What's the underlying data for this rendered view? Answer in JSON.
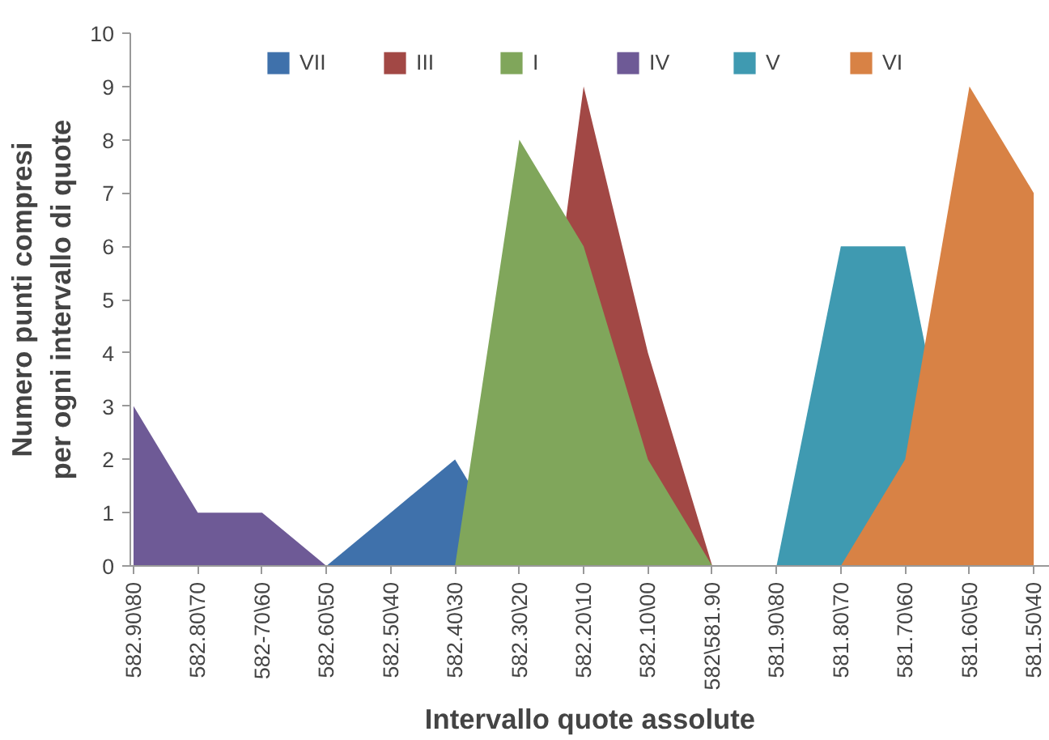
{
  "chart_data": {
    "type": "area",
    "xlabel": "Intervallo quote assolute",
    "ylabel": "Numero punti compresi\nper ogni intervallo di quote",
    "categories": [
      "582.90\\80",
      "582.80\\70",
      "582-70\\60",
      "582.60\\50",
      "582.50\\40",
      "582.40\\30",
      "582.30\\20",
      "582.20\\10",
      "582.10\\00",
      "582\\581.90",
      "581.90\\80",
      "581.80\\70",
      "581.70\\60",
      "581.60\\50",
      "581.50\\40"
    ],
    "series": [
      {
        "name": "VII",
        "color": "#3f71ab",
        "values": [
          null,
          null,
          null,
          0,
          1,
          2,
          0,
          null,
          null,
          null,
          null,
          null,
          null,
          null,
          null
        ]
      },
      {
        "name": "III",
        "color": "#a24845",
        "values": [
          null,
          null,
          null,
          null,
          null,
          null,
          0,
          9,
          4,
          0,
          null,
          null,
          null,
          null,
          null
        ]
      },
      {
        "name": "I",
        "color": "#80a65b",
        "values": [
          null,
          null,
          null,
          null,
          null,
          0,
          8,
          6,
          2,
          0,
          null,
          null,
          null,
          null,
          null
        ]
      },
      {
        "name": "IV",
        "color": "#6e5a96",
        "values": [
          3,
          1,
          1,
          0,
          null,
          null,
          null,
          null,
          null,
          null,
          null,
          null,
          null,
          null,
          null
        ]
      },
      {
        "name": "V",
        "color": "#3f9ab1",
        "values": [
          null,
          null,
          null,
          null,
          null,
          null,
          null,
          null,
          null,
          null,
          0,
          6,
          6,
          0,
          null
        ]
      },
      {
        "name": "VI",
        "color": "#d88245",
        "values": [
          null,
          null,
          null,
          null,
          null,
          null,
          null,
          null,
          null,
          null,
          null,
          0,
          2,
          9,
          7
        ]
      }
    ],
    "ylim": [
      0,
      10
    ],
    "yticks": [
      0,
      1,
      2,
      3,
      4,
      5,
      6,
      7,
      8,
      9,
      10
    ],
    "grid": false,
    "legend": "top"
  }
}
